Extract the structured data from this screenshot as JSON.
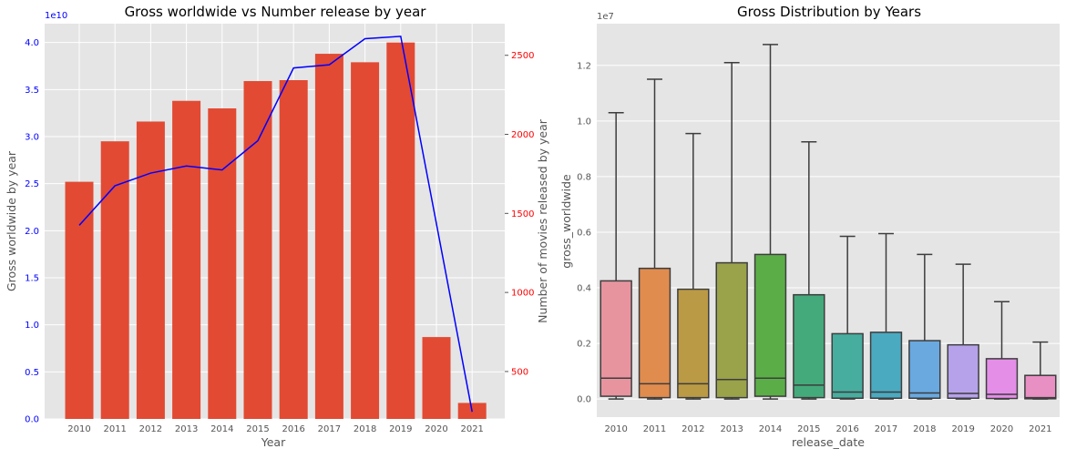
{
  "chart_data": [
    {
      "type": "bar",
      "title": "Gross worldwide vs Number release by year",
      "xlabel": "Year",
      "ylabel": "Gross worldwide by year",
      "y_offset_label": "1e10",
      "categories": [
        "2010",
        "2011",
        "2012",
        "2013",
        "2014",
        "2015",
        "2016",
        "2017",
        "2018",
        "2019",
        "2020",
        "2021"
      ],
      "values": [
        2.52,
        2.95,
        3.16,
        3.38,
        3.3,
        3.59,
        3.6,
        3.88,
        3.79,
        4.0,
        0.87,
        0.17
      ],
      "ylim": [
        0,
        4.2
      ],
      "yticks": [
        0.0,
        0.5,
        1.0,
        1.5,
        2.0,
        2.5,
        3.0,
        3.5,
        4.0
      ],
      "ytick_labels": [
        "0.0",
        "0.5",
        "1.0",
        "1.5",
        "2.0",
        "2.5",
        "3.0",
        "3.5",
        "4.0"
      ],
      "bar_color": "#e24a33",
      "left_axis_color": "#0000ff",
      "secondary_axis": {
        "type": "line",
        "ylabel": "Number of movies released by year",
        "values": [
          1425,
          1675,
          1755,
          1800,
          1775,
          1960,
          2420,
          2440,
          2605,
          2620,
          1435,
          245
        ],
        "ylim": [
          200,
          2700
        ],
        "yticks": [
          500,
          1000,
          1500,
          2000,
          2500
        ],
        "ytick_labels": [
          "500",
          "1000",
          "1500",
          "2000",
          "2500"
        ],
        "line_color": "#0000ff",
        "axis_color": "#ff0000"
      },
      "grid": true
    },
    {
      "type": "box",
      "title": "Gross Distribution by Years",
      "xlabel": "release_date",
      "ylabel": "gross_worldwide",
      "y_offset_label": "1e7",
      "categories": [
        "2010",
        "2011",
        "2012",
        "2013",
        "2014",
        "2015",
        "2016",
        "2017",
        "2018",
        "2019",
        "2020",
        "2021"
      ],
      "boxes": [
        {
          "whislo": 0.0,
          "q1": 0.01,
          "med": 0.075,
          "q3": 0.425,
          "whishi": 1.03,
          "color": "#e8949f"
        },
        {
          "whislo": 0.0,
          "q1": 0.005,
          "med": 0.055,
          "q3": 0.47,
          "whishi": 1.15,
          "color": "#e08c4f"
        },
        {
          "whislo": 0.0,
          "q1": 0.005,
          "med": 0.055,
          "q3": 0.395,
          "whishi": 0.955,
          "color": "#bb9a45"
        },
        {
          "whislo": 0.0,
          "q1": 0.005,
          "med": 0.07,
          "q3": 0.49,
          "whishi": 1.21,
          "color": "#9aa24a"
        },
        {
          "whislo": 0.0,
          "q1": 0.01,
          "med": 0.075,
          "q3": 0.52,
          "whishi": 1.275,
          "color": "#5bae47"
        },
        {
          "whislo": 0.0,
          "q1": 0.005,
          "med": 0.05,
          "q3": 0.375,
          "whishi": 0.925,
          "color": "#44aa7b"
        },
        {
          "whislo": 0.0,
          "q1": 0.003,
          "med": 0.025,
          "q3": 0.235,
          "whishi": 0.585,
          "color": "#47ad9f"
        },
        {
          "whislo": 0.0,
          "q1": 0.003,
          "med": 0.025,
          "q3": 0.24,
          "whishi": 0.595,
          "color": "#4aaac0"
        },
        {
          "whislo": 0.0,
          "q1": 0.003,
          "med": 0.022,
          "q3": 0.21,
          "whishi": 0.52,
          "color": "#69a9e0"
        },
        {
          "whislo": 0.0,
          "q1": 0.003,
          "med": 0.02,
          "q3": 0.195,
          "whishi": 0.485,
          "color": "#b6a2ea"
        },
        {
          "whislo": 0.0,
          "q1": 0.002,
          "med": 0.017,
          "q3": 0.145,
          "whishi": 0.35,
          "color": "#e48ee8"
        },
        {
          "whislo": 0.0,
          "q1": 0.001,
          "med": 0.005,
          "q3": 0.085,
          "whishi": 0.205,
          "color": "#e88fc3"
        }
      ],
      "ylim": [
        -0.065,
        1.35
      ],
      "yticks": [
        0.0,
        0.2,
        0.4,
        0.6,
        0.8,
        1.0,
        1.2
      ],
      "ytick_labels": [
        "0.0",
        "0.2",
        "0.4",
        "0.6",
        "0.8",
        "1.0",
        "1.2"
      ],
      "grid": true
    }
  ]
}
